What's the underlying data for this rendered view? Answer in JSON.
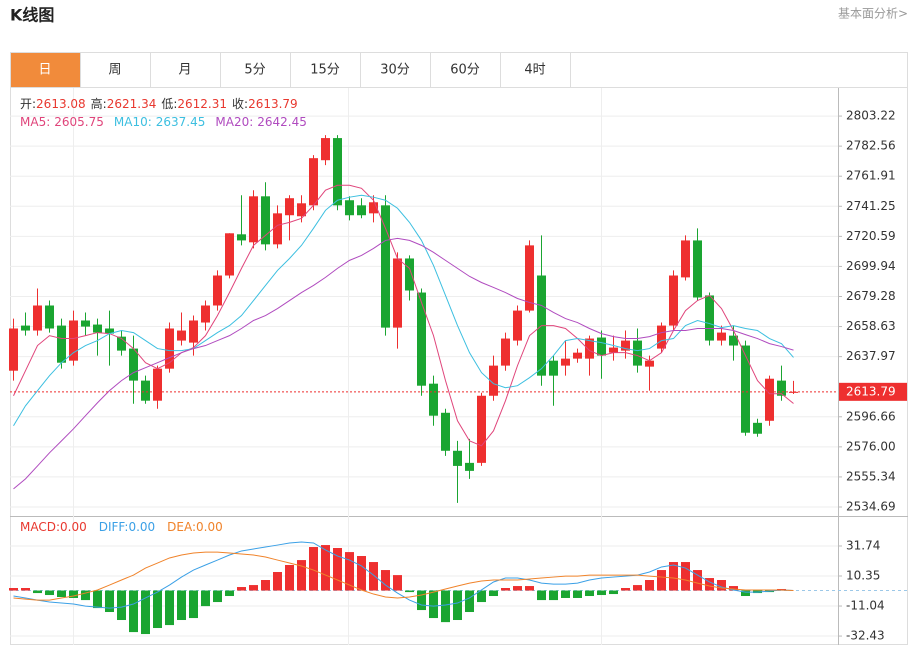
{
  "header": {
    "title": "K线图",
    "link": "基本面分析>"
  },
  "tabs": [
    "日",
    "周",
    "月",
    "5分",
    "15分",
    "30分",
    "60分",
    "4时"
  ],
  "active_tab": 0,
  "chart_data": [
    {
      "type": "candlestick",
      "up_color": "#ee2f2f",
      "down_color": "#1aa531",
      "ohlc_labels": [
        "开:",
        "高:",
        "低:",
        "收:"
      ],
      "open": [
        2628.3,
        2659.3,
        2655.9,
        2673.1,
        2659.3,
        2635.2,
        2662.8,
        2660.0,
        2657.3,
        2651.7,
        2643.5,
        2621.5,
        2607.7,
        2629.7,
        2649.0,
        2647.6,
        2661.4,
        2673.1,
        2693.7,
        2722.0,
        2716.5,
        2748.1,
        2715.1,
        2735.1,
        2734.4,
        2741.9,
        2772.9,
        2788.1,
        2745.4,
        2741.9,
        2736.4,
        2741.9,
        2657.9,
        2705.4,
        2682.0,
        2619.4,
        2599.4,
        2573.3,
        2565.0,
        2565.0,
        2611.1,
        2631.8,
        2649.0,
        2669.6,
        2693.7,
        2635.2,
        2631.8,
        2636.6,
        2636.6,
        2651.1,
        2640.7,
        2642.1,
        2649.0,
        2631.1,
        2643.5,
        2659.3,
        2692.4,
        2717.8,
        2680.0,
        2649.0,
        2652.4,
        2645.6,
        2592.5,
        2593.9,
        2621.5,
        2613.08
      ],
      "high": [
        2664.1,
        2668.3,
        2684.8,
        2676.5,
        2664.1,
        2669.6,
        2668.3,
        2664.1,
        2669.6,
        2655.9,
        2652.4,
        2624.9,
        2631.8,
        2661.4,
        2668.3,
        2666.2,
        2676.5,
        2697.2,
        2722.7,
        2748.8,
        2752.3,
        2757.8,
        2741.9,
        2748.8,
        2748.8,
        2776.4,
        2790.1,
        2790.1,
        2748.1,
        2746.8,
        2748.8,
        2748.8,
        2709.6,
        2707.5,
        2684.8,
        2624.9,
        2602.2,
        2580.1,
        2581.5,
        2613.2,
        2638.7,
        2654.5,
        2673.1,
        2717.8,
        2721.3,
        2638.7,
        2649.0,
        2643.5,
        2652.4,
        2655.9,
        2652.4,
        2655.9,
        2657.3,
        2638.7,
        2661.4,
        2697.2,
        2721.3,
        2726.1,
        2682.0,
        2659.3,
        2659.3,
        2649.0,
        2595.3,
        2624.9,
        2631.8,
        2621.34
      ],
      "low": [
        2621.5,
        2652.4,
        2652.4,
        2654.5,
        2629.7,
        2631.8,
        2652.4,
        2638.7,
        2631.8,
        2638.7,
        2605.6,
        2605.6,
        2602.2,
        2627.0,
        2645.6,
        2638.7,
        2655.9,
        2669.6,
        2691.7,
        2714.4,
        2712.3,
        2711.0,
        2712.3,
        2717.8,
        2730.2,
        2738.5,
        2769.5,
        2738.5,
        2731.6,
        2733.0,
        2730.2,
        2652.4,
        2643.5,
        2676.5,
        2611.1,
        2590.5,
        2569.8,
        2537.5,
        2554.0,
        2562.9,
        2607.7,
        2628.3,
        2645.6,
        2668.3,
        2618.0,
        2604.2,
        2624.9,
        2633.8,
        2624.9,
        2622.8,
        2635.2,
        2636.6,
        2627.0,
        2614.6,
        2640.7,
        2655.9,
        2690.3,
        2676.5,
        2645.6,
        2645.6,
        2635.2,
        2583.6,
        2582.9,
        2590.5,
        2607.7,
        2612.31
      ],
      "close": [
        2657.3,
        2655.9,
        2673.1,
        2657.3,
        2633.8,
        2662.8,
        2658.6,
        2654.5,
        2653.8,
        2642.1,
        2621.5,
        2607.7,
        2629.7,
        2657.3,
        2655.9,
        2662.8,
        2673.1,
        2693.7,
        2722.7,
        2717.8,
        2748.1,
        2715.1,
        2736.4,
        2746.8,
        2743.3,
        2774.3,
        2788.1,
        2741.9,
        2735.1,
        2735.1,
        2744.0,
        2657.9,
        2705.4,
        2683.4,
        2618.0,
        2597.4,
        2573.3,
        2562.9,
        2559.5,
        2611.1,
        2631.8,
        2650.4,
        2669.6,
        2714.4,
        2624.9,
        2624.9,
        2636.6,
        2640.7,
        2650.4,
        2638.7,
        2644.2,
        2649.0,
        2631.8,
        2635.2,
        2659.3,
        2693.7,
        2717.8,
        2678.6,
        2649.0,
        2654.5,
        2645.6,
        2585.7,
        2585.0,
        2622.8,
        2611.1,
        2613.79
      ],
      "series": [
        {
          "name": "MA5:",
          "color": "#e0457b",
          "values": [
            2611.1,
            2628.3,
            2645.6,
            2652.4,
            2650.4,
            2650.4,
            2652.4,
            2654.5,
            2653.8,
            2650.4,
            2643.5,
            2633.8,
            2629.7,
            2633.8,
            2640.7,
            2644.2,
            2652.4,
            2666.2,
            2682.0,
            2698.6,
            2714.4,
            2721.3,
            2728.2,
            2730.2,
            2733.0,
            2741.9,
            2752.3,
            2755.7,
            2755.7,
            2753.6,
            2745.4,
            2726.1,
            2705.4,
            2698.6,
            2675.2,
            2652.4,
            2621.5,
            2593.9,
            2580.1,
            2576.7,
            2587.0,
            2607.7,
            2631.8,
            2652.4,
            2659.3,
            2659.3,
            2657.3,
            2650.4,
            2642.1,
            2638.7,
            2640.7,
            2640.7,
            2638.7,
            2635.2,
            2640.7,
            2655.9,
            2669.6,
            2676.5,
            2680.0,
            2671.0,
            2655.9,
            2638.7,
            2621.5,
            2612.5,
            2612.5,
            2605.75
          ]
        },
        {
          "name": "MA10:",
          "color": "#3cbfe0",
          "values": [
            2590.5,
            2604.2,
            2614.6,
            2624.9,
            2633.8,
            2640.7,
            2645.6,
            2649.0,
            2653.8,
            2655.9,
            2654.5,
            2649.0,
            2643.5,
            2642.1,
            2642.1,
            2643.5,
            2649.0,
            2654.5,
            2659.3,
            2666.2,
            2676.5,
            2686.9,
            2697.2,
            2705.4,
            2714.4,
            2726.1,
            2738.5,
            2745.4,
            2747.5,
            2748.8,
            2747.5,
            2745.4,
            2739.9,
            2730.2,
            2717.8,
            2700.6,
            2680.0,
            2659.3,
            2640.7,
            2627.0,
            2619.4,
            2616.6,
            2618.0,
            2623.5,
            2629.7,
            2638.7,
            2649.0,
            2650.4,
            2649.0,
            2647.6,
            2645.6,
            2643.5,
            2642.1,
            2643.5,
            2649.0,
            2650.4,
            2659.3,
            2662.8,
            2660.7,
            2657.9,
            2659.3,
            2657.3,
            2655.9,
            2650.4,
            2646.9,
            2637.45
          ]
        },
        {
          "name": "MA20:",
          "color": "#b04bbf",
          "values": [
            2547.1,
            2554.0,
            2562.9,
            2571.9,
            2580.1,
            2588.4,
            2597.4,
            2606.3,
            2614.6,
            2621.5,
            2627.0,
            2630.4,
            2633.8,
            2637.3,
            2640.7,
            2643.5,
            2645.6,
            2649.0,
            2652.4,
            2657.3,
            2662.8,
            2666.2,
            2671.0,
            2676.5,
            2682.0,
            2686.9,
            2692.4,
            2698.6,
            2704.1,
            2707.5,
            2712.3,
            2717.8,
            2719.2,
            2717.8,
            2714.4,
            2709.6,
            2704.1,
            2698.6,
            2693.1,
            2688.9,
            2685.5,
            2682.0,
            2677.9,
            2675.2,
            2673.1,
            2668.3,
            2664.1,
            2661.4,
            2657.3,
            2653.8,
            2651.7,
            2650.4,
            2650.4,
            2651.7,
            2654.5,
            2655.9,
            2655.9,
            2657.3,
            2657.3,
            2657.3,
            2655.9,
            2653.1,
            2650.4,
            2646.9,
            2644.9,
            2642.45
          ]
        }
      ],
      "ylim": [
        2528.5,
        2822.5
      ],
      "yticks": [
        2803.22,
        2782.56,
        2761.91,
        2741.25,
        2720.59,
        2699.94,
        2679.28,
        2658.63,
        2637.97,
        2596.66,
        {
          "value": 2576,
          "label": "2576.00"
        },
        2555.34,
        2534.69
      ],
      "grid": true,
      "last_price_line": true
    },
    {
      "type": "macd",
      "series": [
        {
          "name": "MACD:",
          "type": "bar",
          "color": "#e8382f",
          "up_color": "#ee2f2f",
          "down_color": "#1aa531",
          "values": [
            1.8,
            1.8,
            -1.8,
            -3.2,
            -4.6,
            -5.3,
            -6.8,
            -12.5,
            -15.3,
            -21.0,
            -29.6,
            -31.0,
            -26.7,
            -24.6,
            -21.0,
            -19.6,
            -11.1,
            -8.2,
            -3.9,
            2.5,
            3.9,
            7.5,
            13.2,
            18.2,
            21.7,
            31.0,
            32.4,
            30.3,
            27.4,
            24.6,
            20.3,
            14.6,
            11.0,
            -1.1,
            -13.9,
            -19.6,
            -22.5,
            -21.0,
            -15.3,
            -8.2,
            -3.9,
            1.8,
            3.2,
            3.2,
            -6.8,
            -6.8,
            -5.3,
            -5.3,
            -3.9,
            -3.2,
            -2.5,
            1.8,
            3.9,
            7.5,
            14.6,
            20.3,
            20.3,
            14.6,
            8.9,
            7.5,
            3.2,
            -3.9,
            -1.8,
            -1.1,
            1.1,
            0
          ]
        },
        {
          "name": "DIFF:",
          "color": "#3ba0e6",
          "values": [
            -3.9,
            -5.3,
            -6.8,
            -8.2,
            -8.9,
            -9.6,
            -11.1,
            -11.8,
            -12.5,
            -11.8,
            -9.6,
            -5.3,
            -1.1,
            3.9,
            9.6,
            14.6,
            18.2,
            21.7,
            25.3,
            28.2,
            29.6,
            31.0,
            32.4,
            33.9,
            34.6,
            33.9,
            28.9,
            24.6,
            21.7,
            17.5,
            11.0,
            3.9,
            -1.8,
            -6.8,
            -10.3,
            -11.1,
            -10.3,
            -8.9,
            -5.3,
            0.4,
            6.1,
            8.9,
            8.9,
            7.5,
            5.3,
            4.6,
            4.6,
            5.3,
            7.5,
            8.9,
            9.6,
            10.3,
            11.0,
            13.2,
            16.8,
            18.2,
            16.0,
            11.0,
            6.1,
            2.5,
            0.4,
            -1.1,
            -1.1,
            -0.4,
            0.4,
            0
          ]
        },
        {
          "name": "DEA:",
          "color": "#f0832a",
          "values": [
            -5.3,
            -6.1,
            -6.8,
            -6.8,
            -5.3,
            -3.9,
            -1.8,
            0.4,
            3.9,
            7.5,
            11.0,
            16.0,
            19.6,
            23.2,
            25.3,
            26.7,
            27.4,
            27.4,
            26.7,
            26.0,
            25.3,
            23.9,
            21.7,
            19.6,
            17.5,
            14.6,
            11.0,
            7.5,
            3.9,
            0.4,
            -2.5,
            -4.6,
            -5.3,
            -4.6,
            -3.2,
            -1.1,
            1.1,
            3.2,
            5.3,
            6.8,
            7.5,
            7.5,
            7.5,
            8.2,
            8.9,
            9.6,
            10.3,
            10.3,
            11.0,
            11.0,
            11.0,
            11.0,
            11.0,
            10.3,
            9.6,
            8.9,
            7.5,
            5.3,
            3.2,
            1.8,
            1.1,
            0.4,
            0.4,
            0.4,
            0.4,
            0
          ]
        }
      ],
      "legend_values": [
        "0.00",
        "0.00",
        "0.00"
      ],
      "ylim": [
        -38.8,
        53.1
      ],
      "yticks": [
        31.74,
        10.35,
        -11.04,
        -32.43
      ],
      "grid": true
    }
  ]
}
